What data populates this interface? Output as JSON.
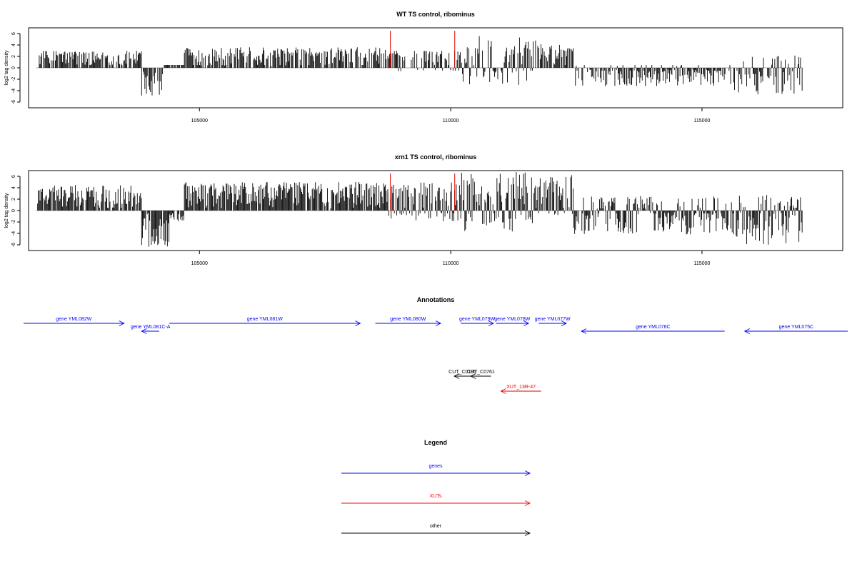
{
  "chart_data": [
    {
      "type": "bar",
      "title": "WT TS control, ribominus",
      "xlabel": "",
      "ylabel": "log2 tag density",
      "xlim": [
        101600,
        117800
      ],
      "ylim": [
        -7,
        7
      ],
      "xticks": [
        105000,
        110000,
        115000
      ],
      "yticks": [
        6,
        4,
        2,
        0,
        -2,
        -4,
        -6
      ],
      "data_extent": [
        101750,
        117000
      ],
      "markers": [
        {
          "x": 108800,
          "color": "#e00000"
        },
        {
          "x": 110080,
          "color": "#e00000"
        }
      ],
      "regions": [
        {
          "from": 101780,
          "to": 103850,
          "lo": 0,
          "hi": 3.0
        },
        {
          "from": 103850,
          "to": 104300,
          "lo": -5.5,
          "hi": 0
        },
        {
          "from": 104300,
          "to": 104700,
          "lo": 0,
          "hi": 0
        },
        {
          "from": 104700,
          "to": 108750,
          "lo": 0,
          "hi": 3.6
        },
        {
          "from": 108750,
          "to": 110200,
          "lo": -0.8,
          "hi": 3.0
        },
        {
          "from": 110200,
          "to": 111700,
          "lo": -3.0,
          "hi": 5.6
        },
        {
          "from": 111700,
          "to": 112450,
          "lo": 0,
          "hi": 4.3
        },
        {
          "from": 112450,
          "to": 115600,
          "lo": -3.2,
          "hi": 0.4
        },
        {
          "from": 115600,
          "to": 117000,
          "lo": -4.8,
          "hi": 2.3
        }
      ]
    },
    {
      "type": "bar",
      "title": "xrn1 TS control, ribominus",
      "xlabel": "",
      "ylabel": "log2 tag density",
      "xlim": [
        101600,
        117800
      ],
      "ylim": [
        -7,
        7
      ],
      "xticks": [
        105000,
        110000,
        115000
      ],
      "yticks": [
        6,
        4,
        2,
        0,
        -2,
        -4,
        -6
      ],
      "data_extent": [
        101750,
        117000
      ],
      "markers": [
        {
          "x": 108800,
          "color": "#e00000"
        },
        {
          "x": 110080,
          "color": "#e00000"
        }
      ],
      "regions": [
        {
          "from": 101780,
          "to": 103850,
          "lo": 0,
          "hi": 4.5
        },
        {
          "from": 103850,
          "to": 104400,
          "lo": -6.5,
          "hi": 0
        },
        {
          "from": 104400,
          "to": 104700,
          "lo": -2.0,
          "hi": 0
        },
        {
          "from": 104700,
          "to": 108750,
          "lo": 0,
          "hi": 5.0
        },
        {
          "from": 108750,
          "to": 110200,
          "lo": -2.0,
          "hi": 5.0
        },
        {
          "from": 110200,
          "to": 111700,
          "lo": -3.8,
          "hi": 6.8
        },
        {
          "from": 111700,
          "to": 112450,
          "lo": -1.0,
          "hi": 6.2
        },
        {
          "from": 112450,
          "to": 115600,
          "lo": -4.2,
          "hi": 2.6
        },
        {
          "from": 115600,
          "to": 117000,
          "lo": -6.0,
          "hi": 2.8
        }
      ]
    }
  ],
  "annotations": {
    "title": "Annotations",
    "features": [
      {
        "label": "gene YML082W",
        "start": 101500,
        "end": 103500,
        "strand": "+",
        "kind": "gene",
        "row": 0
      },
      {
        "label": "gene YML081C-A",
        "start": 103850,
        "end": 104200,
        "strand": "-",
        "kind": "gene",
        "row": 1
      },
      {
        "label": "gene YML081W",
        "start": 104400,
        "end": 108200,
        "strand": "+",
        "kind": "gene",
        "row": 0
      },
      {
        "label": "gene YML080W",
        "start": 108500,
        "end": 109800,
        "strand": "+",
        "kind": "gene",
        "row": 0
      },
      {
        "label": "gene YML079W",
        "start": 110200,
        "end": 110850,
        "strand": "+",
        "kind": "gene",
        "row": 0
      },
      {
        "label": "gene YML078W",
        "start": 110900,
        "end": 111550,
        "strand": "+",
        "kind": "gene",
        "row": 0
      },
      {
        "label": "gene YML077W",
        "start": 111750,
        "end": 112300,
        "strand": "+",
        "kind": "gene",
        "row": 0
      },
      {
        "label": "gene YML076C",
        "start": 112600,
        "end": 115450,
        "strand": "-",
        "kind": "gene",
        "row": 1
      },
      {
        "label": "gene YML075C",
        "start": 115850,
        "end": 117900,
        "strand": "-",
        "kind": "gene",
        "row": 1
      },
      {
        "label": "CUT_C0195",
        "start": 110070,
        "end": 110400,
        "strand": "-",
        "kind": "other",
        "row": 2
      },
      {
        "label": "CUT_C0761",
        "start": 110400,
        "end": 110800,
        "strand": "-",
        "kind": "other",
        "row": 2
      },
      {
        "label": "XUT_13R-47",
        "start": 111000,
        "end": 111800,
        "strand": "-",
        "kind": "xut",
        "row": 3
      }
    ]
  },
  "legend": {
    "title": "Legend",
    "items": [
      {
        "label": "genes",
        "color": "#0000ff"
      },
      {
        "label": "XUTs",
        "color": "#ff0000"
      },
      {
        "label": "other",
        "color": "#000000"
      }
    ]
  },
  "colors": {
    "gene": "#0000ff",
    "xut": "#e00000",
    "other": "#000000",
    "bars": "#000000"
  }
}
